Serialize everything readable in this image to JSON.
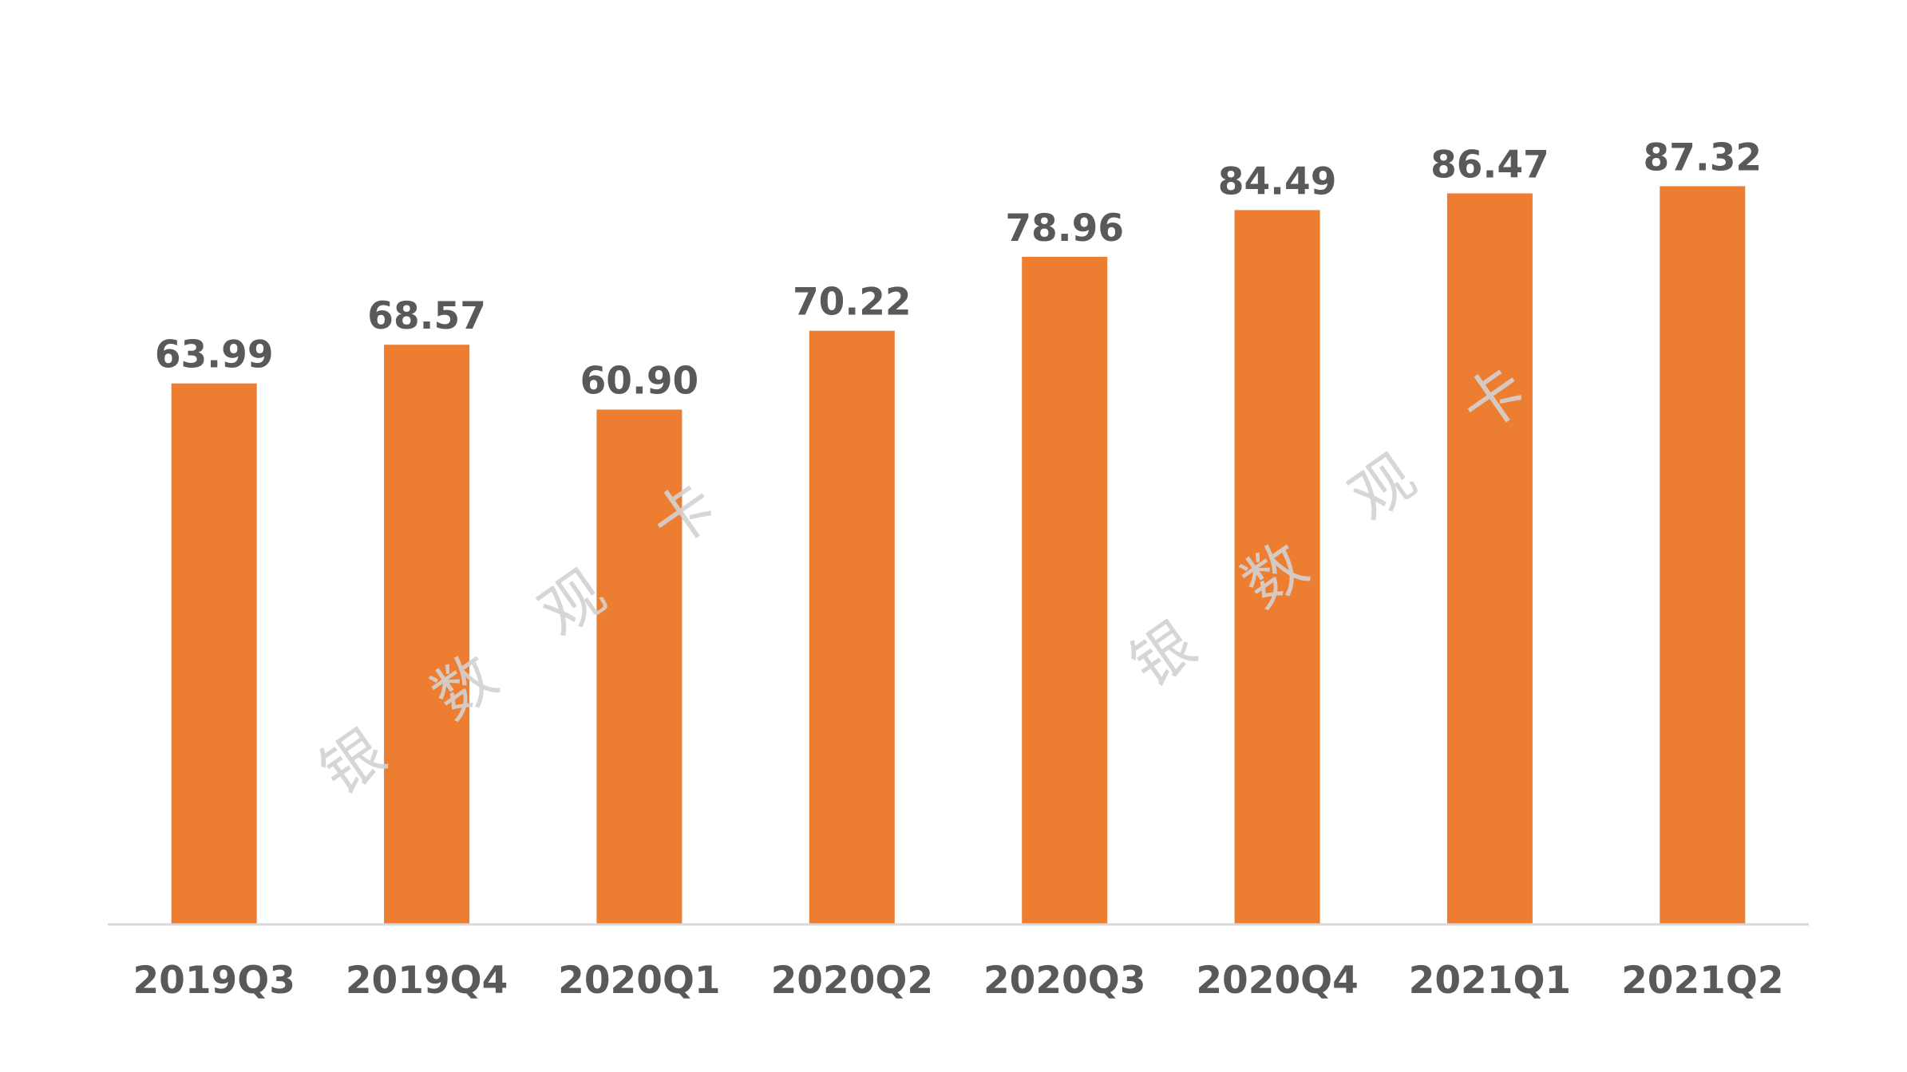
{
  "chart_data": {
    "type": "bar",
    "categories": [
      "2019Q3",
      "2019Q4",
      "2020Q1",
      "2020Q2",
      "2020Q3",
      "2020Q4",
      "2021Q1",
      "2021Q2"
    ],
    "values": [
      63.99,
      68.57,
      60.9,
      70.22,
      78.96,
      84.49,
      86.47,
      87.32
    ],
    "value_labels": [
      "63.99",
      "68.57",
      "60.90",
      "70.22",
      "78.96",
      "84.49",
      "86.47",
      "87.32"
    ],
    "ylim": [
      0,
      110
    ],
    "grid": false,
    "legend": "none",
    "colors": {
      "bar": "#ED7D31",
      "axis": "#D9D9D9",
      "text": "#595959"
    }
  },
  "watermark": {
    "text": "银数观卡",
    "chars": [
      "银",
      "数",
      "观",
      "卡"
    ]
  }
}
